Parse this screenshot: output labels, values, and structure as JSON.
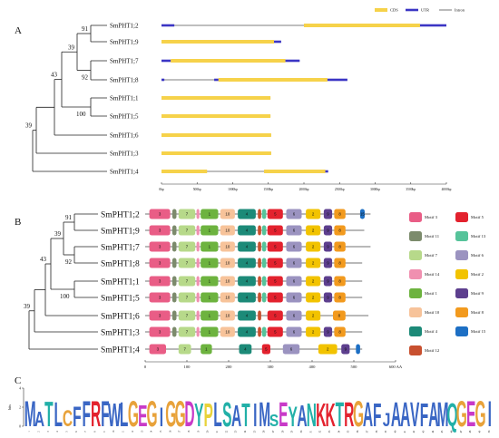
{
  "panels": {
    "a": {
      "label": "A",
      "legend": [
        {
          "name": "CDS",
          "color": "#f6d24a"
        },
        {
          "name": "UTR",
          "color": "#3b35c4"
        },
        {
          "name": "Intron",
          "color": "#555555"
        }
      ],
      "bootstrap": [
        "91",
        "39",
        "43",
        "92",
        "100",
        "39"
      ],
      "genes": [
        "SmPHT1;2",
        "SmPHT1;9",
        "SmPHT1;7",
        "SmPHT1;8",
        "SmPHT1;1",
        "SmPHT1;5",
        "SmPHT1;6",
        "SmPHT1;3",
        "SmPHT1;4"
      ],
      "structures": [
        {
          "line": [
            0,
            4000
          ],
          "blocks": [
            [
              0,
              180,
              "utr"
            ],
            [
              2000,
              3630,
              "cds"
            ],
            [
              3630,
              4000,
              "utr"
            ]
          ]
        },
        {
          "line": [
            0,
            1680
          ],
          "blocks": [
            [
              0,
              1580,
              "cds"
            ],
            [
              1580,
              1680,
              "utr"
            ]
          ]
        },
        {
          "line": [
            0,
            1940
          ],
          "blocks": [
            [
              0,
              130,
              "utr"
            ],
            [
              130,
              1740,
              "cds"
            ],
            [
              1740,
              1940,
              "utr"
            ]
          ]
        },
        {
          "line": [
            0,
            2610
          ],
          "blocks": [
            [
              0,
              40,
              "utr"
            ],
            [
              740,
              800,
              "utr"
            ],
            [
              800,
              2330,
              "cds"
            ],
            [
              2330,
              2610,
              "utr"
            ]
          ]
        },
        {
          "line": [
            0,
            1530
          ],
          "blocks": [
            [
              0,
              1530,
              "cds"
            ]
          ]
        },
        {
          "line": [
            0,
            1530
          ],
          "blocks": [
            [
              0,
              1530,
              "cds"
            ]
          ]
        },
        {
          "line": [
            0,
            1540
          ],
          "blocks": [
            [
              0,
              1540,
              "cds"
            ]
          ]
        },
        {
          "line": [
            0,
            1540
          ],
          "blocks": [
            [
              0,
              1540,
              "cds"
            ]
          ]
        },
        {
          "line": [
            0,
            2340
          ],
          "blocks": [
            [
              0,
              640,
              "cds"
            ],
            [
              1440,
              2300,
              "cds"
            ],
            [
              2300,
              2340,
              "utr"
            ]
          ]
        }
      ],
      "axis": {
        "min": 0,
        "max": 4000,
        "ticks": [
          "0bp",
          "500bp",
          "1000bp",
          "1500bp",
          "2000bp",
          "2500bp",
          "3000bp",
          "3500bp",
          "4000bp"
        ]
      }
    },
    "b": {
      "label": "B",
      "bootstrap": [
        "91",
        "39",
        "43",
        "92",
        "100",
        "39"
      ],
      "genes": [
        "SmPHT1;2",
        "SmPHT1;9",
        "SmPHT1;7",
        "SmPHT1;8",
        "SmPHT1;1",
        "SmPHT1;5",
        "SmPHT1;6",
        "SmPHT1;3",
        "SmPHT1;4"
      ],
      "motif_colors": {
        "1": "#6db33f",
        "2": "#f2c300",
        "3": "#e95d86",
        "4": "#1c8a78",
        "5": "#e3222e",
        "6": "#9b93c0",
        "7": "#b7d98a",
        "8": "#f29a1e",
        "9": "#5d3f8e",
        "10": "#f7c39a",
        "11": "#7c8b6c",
        "12": "#c8502f",
        "13": "#56c39a",
        "14": "#f090b0",
        "15": "#1d6fc4"
      },
      "motif_rows": [
        {
          "len": 540,
          "motifs": [
            [
              10,
              60,
              "3"
            ],
            [
              65,
              75,
              "11"
            ],
            [
              80,
              120,
              "7"
            ],
            [
              123,
              130,
              "14"
            ],
            [
              133,
              175,
              "1"
            ],
            [
              180,
              215,
              "10"
            ],
            [
              222,
              265,
              "4"
            ],
            [
              270,
              278,
              "12"
            ],
            [
              280,
              290,
              "13"
            ],
            [
              293,
              330,
              "5"
            ],
            [
              338,
              375,
              "6"
            ],
            [
              385,
              420,
              "2"
            ],
            [
              428,
              448,
              "9"
            ],
            [
              453,
              480,
              "8"
            ],
            [
              515,
              526,
              "15"
            ]
          ]
        },
        {
          "len": 525,
          "motifs": [
            [
              10,
              60,
              "3"
            ],
            [
              65,
              75,
              "11"
            ],
            [
              80,
              120,
              "7"
            ],
            [
              123,
              130,
              "14"
            ],
            [
              133,
              175,
              "1"
            ],
            [
              180,
              215,
              "10"
            ],
            [
              222,
              265,
              "4"
            ],
            [
              270,
              278,
              "12"
            ],
            [
              280,
              290,
              "13"
            ],
            [
              293,
              330,
              "5"
            ],
            [
              338,
              375,
              "6"
            ],
            [
              385,
              420,
              "2"
            ],
            [
              428,
              448,
              "9"
            ],
            [
              453,
              480,
              "8"
            ]
          ]
        },
        {
          "len": 540,
          "motifs": [
            [
              10,
              60,
              "3"
            ],
            [
              65,
              75,
              "11"
            ],
            [
              80,
              120,
              "7"
            ],
            [
              123,
              130,
              "14"
            ],
            [
              133,
              175,
              "1"
            ],
            [
              180,
              215,
              "10"
            ],
            [
              222,
              265,
              "4"
            ],
            [
              270,
              278,
              "12"
            ],
            [
              280,
              290,
              "13"
            ],
            [
              293,
              330,
              "5"
            ],
            [
              338,
              375,
              "6"
            ],
            [
              385,
              420,
              "2"
            ],
            [
              428,
              448,
              "9"
            ],
            [
              453,
              480,
              "8"
            ]
          ]
        },
        {
          "len": 520,
          "motifs": [
            [
              10,
              60,
              "3"
            ],
            [
              65,
              75,
              "11"
            ],
            [
              80,
              120,
              "7"
            ],
            [
              123,
              130,
              "14"
            ],
            [
              133,
              175,
              "1"
            ],
            [
              180,
              215,
              "10"
            ],
            [
              222,
              265,
              "4"
            ],
            [
              270,
              278,
              "12"
            ],
            [
              280,
              290,
              "13"
            ],
            [
              293,
              330,
              "5"
            ],
            [
              338,
              375,
              "6"
            ],
            [
              385,
              420,
              "2"
            ],
            [
              428,
              448,
              "9"
            ],
            [
              453,
              480,
              "8"
            ]
          ]
        },
        {
          "len": 520,
          "motifs": [
            [
              10,
              60,
              "3"
            ],
            [
              65,
              75,
              "11"
            ],
            [
              80,
              120,
              "7"
            ],
            [
              123,
              130,
              "14"
            ],
            [
              133,
              175,
              "1"
            ],
            [
              180,
              215,
              "10"
            ],
            [
              222,
              265,
              "4"
            ],
            [
              270,
              278,
              "12"
            ],
            [
              280,
              290,
              "13"
            ],
            [
              293,
              330,
              "5"
            ],
            [
              338,
              375,
              "6"
            ],
            [
              385,
              420,
              "2"
            ],
            [
              428,
              448,
              "9"
            ],
            [
              453,
              480,
              "8"
            ]
          ]
        },
        {
          "len": 520,
          "motifs": [
            [
              10,
              60,
              "3"
            ],
            [
              65,
              75,
              "11"
            ],
            [
              80,
              120,
              "7"
            ],
            [
              123,
              130,
              "14"
            ],
            [
              133,
              175,
              "1"
            ],
            [
              180,
              215,
              "10"
            ],
            [
              222,
              265,
              "4"
            ],
            [
              270,
              278,
              "12"
            ],
            [
              280,
              290,
              "13"
            ],
            [
              293,
              330,
              "5"
            ],
            [
              338,
              375,
              "6"
            ],
            [
              385,
              420,
              "2"
            ],
            [
              428,
              448,
              "9"
            ],
            [
              453,
              480,
              "8"
            ]
          ]
        },
        {
          "len": 535,
          "motifs": [
            [
              10,
              60,
              "3"
            ],
            [
              65,
              75,
              "11"
            ],
            [
              80,
              120,
              "7"
            ],
            [
              123,
              130,
              "14"
            ],
            [
              133,
              175,
              "1"
            ],
            [
              180,
              215,
              "10"
            ],
            [
              222,
              265,
              "4"
            ],
            [
              270,
              278,
              "12"
            ],
            [
              293,
              330,
              "5"
            ],
            [
              338,
              375,
              "6"
            ],
            [
              385,
              420,
              "2"
            ],
            [
              450,
              480,
              "8"
            ]
          ]
        },
        {
          "len": 520,
          "motifs": [
            [
              10,
              60,
              "3"
            ],
            [
              65,
              75,
              "11"
            ],
            [
              80,
              120,
              "7"
            ],
            [
              123,
              130,
              "14"
            ],
            [
              133,
              175,
              "1"
            ],
            [
              180,
              215,
              "10"
            ],
            [
              222,
              265,
              "4"
            ],
            [
              270,
              278,
              "12"
            ],
            [
              280,
              290,
              "13"
            ],
            [
              293,
              330,
              "5"
            ],
            [
              338,
              375,
              "6"
            ],
            [
              385,
              420,
              "2"
            ],
            [
              428,
              448,
              "9"
            ],
            [
              453,
              480,
              "8"
            ]
          ]
        },
        {
          "len": 520,
          "motifs": [
            [
              10,
              50,
              "3"
            ],
            [
              80,
              110,
              "7"
            ],
            [
              133,
              160,
              "1"
            ],
            [
              225,
              255,
              "4"
            ],
            [
              280,
              300,
              "5"
            ],
            [
              330,
              370,
              "6"
            ],
            [
              415,
              460,
              "2"
            ],
            [
              470,
              490,
              "9"
            ],
            [
              505,
              515,
              "15"
            ]
          ]
        }
      ],
      "legend": [
        {
          "id": "3",
          "label": "Motif 3"
        },
        {
          "id": "5",
          "label": "Motif 5"
        },
        {
          "id": "11",
          "label": "Motif 11"
        },
        {
          "id": "13",
          "label": "Motif 13"
        },
        {
          "id": "7",
          "label": "Motif 7"
        },
        {
          "id": "6",
          "label": "Motif 6"
        },
        {
          "id": "14",
          "label": "Motif 14"
        },
        {
          "id": "2",
          "label": "Motif 2"
        },
        {
          "id": "1",
          "label": "Motif 1"
        },
        {
          "id": "9",
          "label": "Motif 9"
        },
        {
          "id": "10",
          "label": "Motif 10"
        },
        {
          "id": "8",
          "label": "Motif 8"
        },
        {
          "id": "4",
          "label": "Motif 4"
        },
        {
          "id": "15",
          "label": "Motif 15"
        },
        {
          "id": "12",
          "label": "Motif 12"
        }
      ],
      "axis": {
        "min": 0,
        "max": 600,
        "ticks": [
          "0",
          "100",
          "200",
          "300",
          "400",
          "500",
          "600 AA"
        ]
      }
    },
    "c": {
      "label": "C",
      "ylabel": "bits",
      "yticks": [
        "0",
        "2",
        "4"
      ],
      "letters": [
        "M",
        "A",
        "T",
        "L",
        "C",
        "F",
        "F",
        "R",
        "F",
        "W",
        "L",
        "G",
        "E",
        "G",
        "I",
        "G",
        "G",
        "D",
        "Y",
        "P",
        "L",
        "S",
        "A",
        "T",
        "I",
        "M",
        "S",
        "E",
        "Y",
        "A",
        "N",
        "K",
        "K",
        "T",
        "R",
        "G",
        "A",
        "F",
        "J",
        "A",
        "A",
        "V",
        "F",
        "A",
        "M",
        "Q",
        "G",
        "E",
        "G",
        "I"
      ],
      "heights": [
        0.95,
        0.55,
        0.92,
        0.9,
        0.6,
        0.75,
        0.95,
        0.95,
        0.95,
        0.85,
        0.9,
        0.95,
        0.8,
        0.95,
        0.7,
        0.95,
        0.95,
        0.95,
        0.85,
        0.85,
        0.9,
        0.9,
        0.8,
        0.85,
        0.85,
        0.9,
        0.45,
        0.9,
        0.75,
        0.8,
        0.85,
        0.85,
        0.85,
        0.9,
        0.9,
        0.95,
        0.9,
        0.85,
        0.5,
        0.9,
        0.9,
        0.9,
        0.85,
        0.9,
        0.9,
        0.85,
        0.95,
        0.95,
        0.95,
        0.95
      ],
      "color_map": {
        "M": "#3a66c4",
        "A": "#3a66c4",
        "T": "#22b0a8",
        "L": "#3a66c4",
        "C": "#e8a23a",
        "F": "#3a66c4",
        "R": "#e3222e",
        "W": "#3a66c4",
        "G": "#e8a23a",
        "E": "#c83ac8",
        "I": "#3a66c4",
        "D": "#c83ac8",
        "Y": "#22b0a8",
        "P": "#e8d23a",
        "S": "#22b0a8",
        "N": "#22b0a8",
        "K": "#e3222e",
        "V": "#3a66c4",
        "Q": "#22b0a8",
        "J": "#3a66c4"
      }
    }
  }
}
